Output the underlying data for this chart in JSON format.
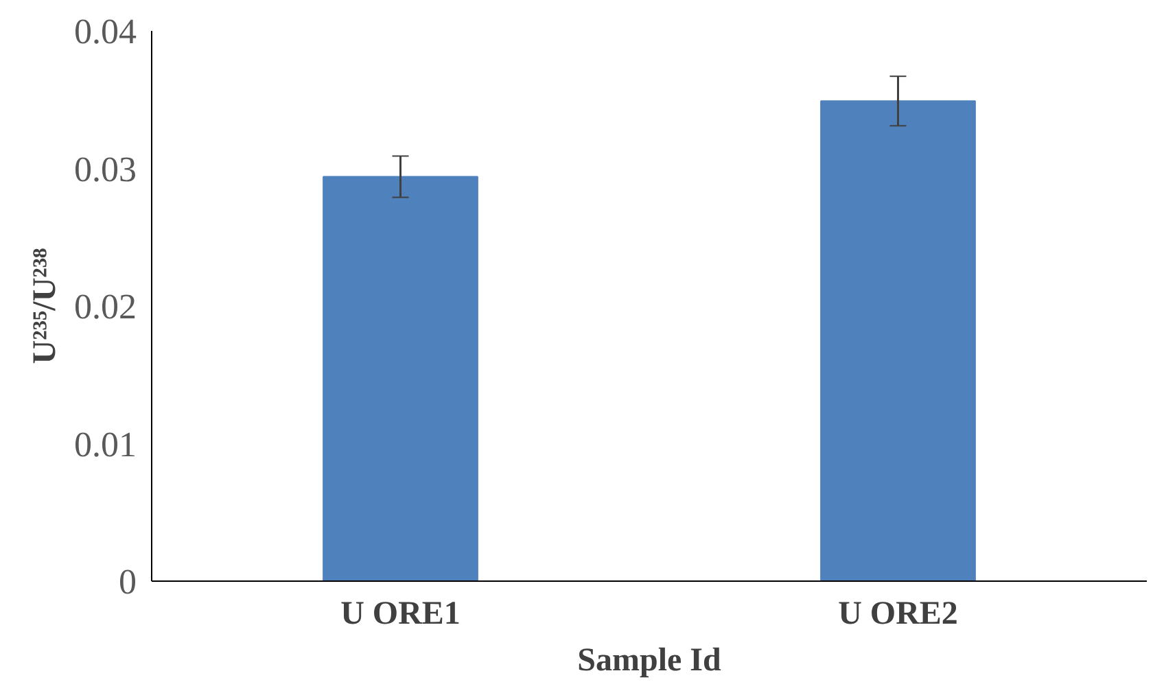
{
  "chart_data": {
    "type": "bar",
    "xlabel": "Sample Id",
    "ylabel": "U²³⁵/U²³⁸",
    "categories": [
      "U ORE1",
      "U ORE2"
    ],
    "values": [
      0.0294,
      0.0349
    ],
    "errors": [
      0.0015,
      0.0018
    ],
    "color": "#4f81bd",
    "ylim": [
      0,
      0.04
    ],
    "yticks": [
      0,
      0.01,
      0.02,
      0.03,
      0.04
    ],
    "grid": false
  }
}
